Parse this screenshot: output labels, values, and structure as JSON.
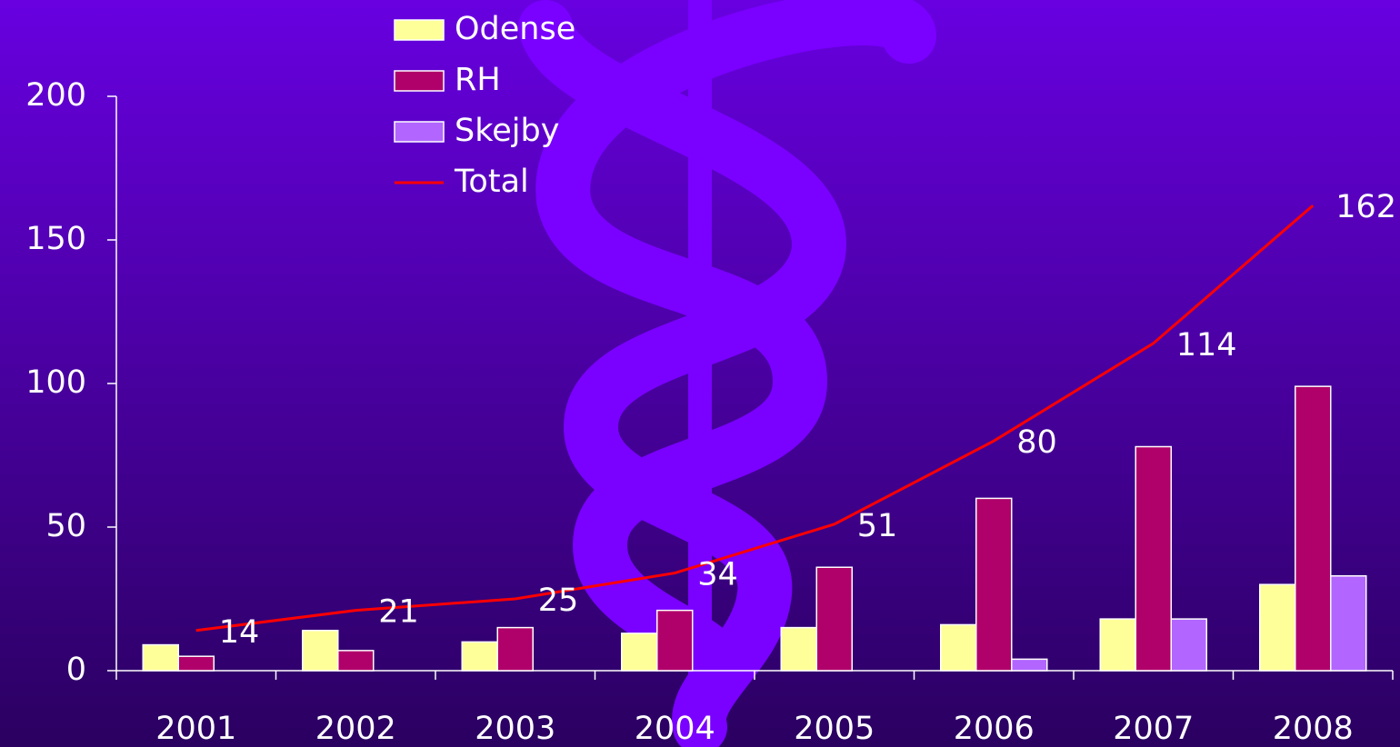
{
  "chart_data": {
    "type": "bar_line",
    "categories": [
      "2001",
      "2002",
      "2003",
      "2004",
      "2005",
      "2006",
      "2007",
      "2008"
    ],
    "series": [
      {
        "name": "Odense",
        "type": "bar",
        "color": "#ffff99",
        "values": [
          9,
          14,
          10,
          13,
          15,
          16,
          18,
          30
        ]
      },
      {
        "name": "RH",
        "type": "bar",
        "color": "#b0006a",
        "values": [
          5,
          7,
          15,
          21,
          36,
          60,
          78,
          99
        ]
      },
      {
        "name": "Skejby",
        "type": "bar",
        "color": "#b266ff",
        "values": [
          null,
          null,
          null,
          null,
          null,
          4,
          18,
          33
        ]
      },
      {
        "name": "Total",
        "type": "line",
        "color": "#ff0000",
        "values": [
          14,
          21,
          25,
          34,
          51,
          80,
          114,
          162
        ]
      }
    ],
    "ylim": [
      0,
      200
    ],
    "yticks": [
      0,
      50,
      100,
      150,
      200
    ]
  }
}
